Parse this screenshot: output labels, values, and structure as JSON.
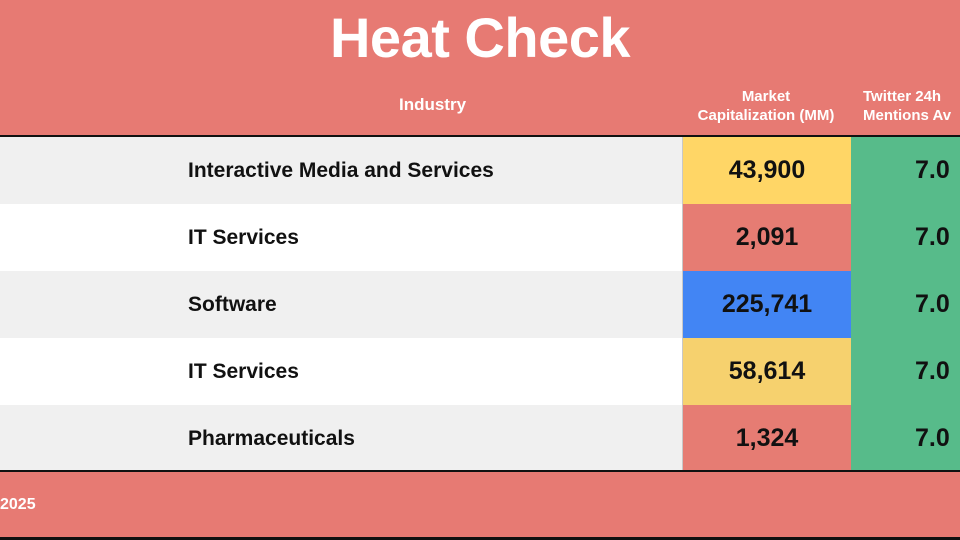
{
  "title": "Heat Check",
  "headers": {
    "industry": "Industry",
    "market_cap_line1": "Market",
    "market_cap_line2": "Capitalization (MM)",
    "twitter_line1": "Twitter 24h",
    "twitter_line2": "Mentions Av"
  },
  "rows": [
    {
      "industry": "Interactive Media and Services",
      "market_cap": "43,900",
      "market_cap_color": "#FFD666",
      "twitter": "7.0"
    },
    {
      "industry": "IT Services",
      "market_cap": "2,091",
      "market_cap_color": "#E67C73",
      "twitter": "7.0"
    },
    {
      "industry": "Software",
      "market_cap": "225,741",
      "market_cap_color": "#4285F4",
      "twitter": "7.0"
    },
    {
      "industry": "IT Services",
      "market_cap": "58,614",
      "market_cap_color": "#F6D16E",
      "twitter": "7.0"
    },
    {
      "industry": "Pharmaceuticals",
      "market_cap": "1,324",
      "market_cap_color": "#E67C73",
      "twitter": "7.0"
    }
  ],
  "footer": "2025",
  "colors": {
    "background": "#E77A73",
    "twitter_cell": "#57BB8A"
  }
}
